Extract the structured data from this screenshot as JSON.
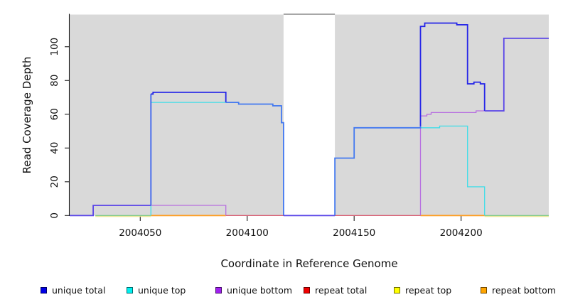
{
  "chart_data": {
    "type": "line",
    "subtype": "step-coverage-plot",
    "xlabel": "Coordinate in Reference Genome",
    "ylabel": "Read Coverage Depth",
    "xlim": [
      2004017,
      2004241
    ],
    "ylim": [
      0,
      119
    ],
    "x_ticks": [
      2004050,
      2004100,
      2004150,
      2004200
    ],
    "x_tick_labels": [
      "2004050",
      "2004100",
      "2004150",
      "2004200"
    ],
    "y_ticks": [
      0,
      20,
      40,
      60,
      80,
      100
    ],
    "y_tick_labels": [
      "0",
      "20",
      "40",
      "60",
      "80",
      "100"
    ],
    "grid": false,
    "background_bands": {
      "gray_color": "#d9d9d9",
      "gray_regions": [
        [
          2004017,
          2004117
        ],
        [
          2004141,
          2004241
        ]
      ],
      "white_gap": [
        2004117,
        2004141
      ],
      "gap_top_border_color": "#8a8a8a"
    },
    "series": [
      {
        "name": "unique total",
        "color": "#0000e6",
        "step_changes": [
          [
            2004017,
            0
          ],
          [
            2004028,
            6
          ],
          [
            2004055,
            73
          ],
          [
            2004090,
            67
          ],
          [
            2004096,
            66
          ],
          [
            2004112,
            65
          ],
          [
            2004116,
            55
          ],
          [
            2004117,
            0
          ],
          [
            2004141,
            34
          ],
          [
            2004150,
            52
          ],
          [
            2004181,
            112
          ],
          [
            2004183,
            114
          ],
          [
            2004198,
            113
          ],
          [
            2004203,
            78
          ],
          [
            2004206,
            79
          ],
          [
            2004209,
            78
          ],
          [
            2004211,
            62
          ],
          [
            2004220,
            105
          ],
          [
            2004241,
            105
          ]
        ]
      },
      {
        "name": "unique top",
        "color": "#00f0f0",
        "step_changes": [
          [
            2004017,
            0
          ],
          [
            2004055,
            67
          ],
          [
            2004090,
            66
          ],
          [
            2004112,
            65
          ],
          [
            2004116,
            55
          ],
          [
            2004117,
            0
          ],
          [
            2004141,
            34
          ],
          [
            2004150,
            52
          ],
          [
            2004181,
            53
          ],
          [
            2004203,
            17
          ],
          [
            2004211,
            0
          ],
          [
            2004241,
            0
          ]
        ]
      },
      {
        "name": "unique bottom",
        "color": "#a020f0",
        "step_changes": [
          [
            2004017,
            0
          ],
          [
            2004028,
            6
          ],
          [
            2004090,
            0
          ],
          [
            2004181,
            61
          ],
          [
            2004207,
            62
          ],
          [
            2004211,
            0
          ],
          [
            2004241,
            0
          ]
        ]
      },
      {
        "name": "repeat total",
        "color": "#f00000",
        "step_changes": [
          [
            2004017,
            0
          ],
          [
            2004241,
            0
          ]
        ]
      },
      {
        "name": "repeat top",
        "color": "#ffff00",
        "step_changes": [
          [
            2004017,
            0
          ],
          [
            2004241,
            0
          ]
        ]
      },
      {
        "name": "repeat bottom",
        "color": "#ffa500",
        "step_changes": [
          [
            2004017,
            0
          ],
          [
            2004241,
            0
          ]
        ]
      }
    ],
    "render_segments": [
      {
        "name": "repeat-total-line",
        "color": "#d85c72",
        "w": 1.3,
        "dy": 0,
        "pts": [
          [
            2004090,
            0
          ],
          [
            2004181,
            0
          ]
        ]
      },
      {
        "name": "repeat-top-line-left",
        "color": "#e6e68c",
        "w": 1.2,
        "dy": 1.4,
        "pts": [
          [
            2004029,
            0
          ],
          [
            2004055,
            0
          ]
        ]
      },
      {
        "name": "repeat-top-line-right",
        "color": "#e6e68c",
        "w": 1.2,
        "dy": 1.4,
        "pts": [
          [
            2004211,
            0
          ],
          [
            2004241,
            0
          ]
        ]
      },
      {
        "name": "cyan-yellow-blend-left",
        "color": "#7ecb87",
        "w": 1.4,
        "dy": 0,
        "pts": [
          [
            2004029,
            0
          ],
          [
            2004055,
            0
          ]
        ]
      },
      {
        "name": "cyan-yellow-blend-right",
        "color": "#7ecb87",
        "w": 1.4,
        "dy": 0,
        "pts": [
          [
            2004211,
            0
          ],
          [
            2004241,
            0
          ]
        ]
      },
      {
        "name": "repeat-bottom-line-left",
        "color": "#ff9d20",
        "w": 1.8,
        "dy": 0,
        "pts": [
          [
            2004055,
            0
          ],
          [
            2004090,
            0
          ]
        ]
      },
      {
        "name": "repeat-bottom-line-right",
        "color": "#ff9d20",
        "w": 1.8,
        "dy": 0,
        "pts": [
          [
            2004181,
            0
          ],
          [
            2004211,
            0
          ]
        ]
      },
      {
        "name": "unique-bottom-line-left",
        "color": "#b76fe0",
        "w": 1.3,
        "dy": 0,
        "pts": [
          [
            2004028,
            0
          ],
          [
            2004028,
            6
          ],
          [
            2004090,
            6
          ],
          [
            2004090,
            0
          ]
        ]
      },
      {
        "name": "unique-bottom-line-right",
        "color": "#b76fe0",
        "w": 1.3,
        "dy": 0,
        "pts": [
          [
            2004181,
            0
          ],
          [
            2004181,
            59
          ],
          [
            2004184,
            59
          ],
          [
            2004184,
            60
          ],
          [
            2004186,
            60
          ],
          [
            2004186,
            61
          ],
          [
            2004207,
            61
          ],
          [
            2004207,
            62
          ],
          [
            2004211,
            62
          ]
        ]
      },
      {
        "name": "unique-top-line-left",
        "color": "#3fdde8",
        "w": 1.3,
        "dy": 0,
        "pts": [
          [
            2004055,
            0
          ],
          [
            2004055,
            67
          ],
          [
            2004090,
            67
          ]
        ]
      },
      {
        "name": "unique-top-line-right",
        "color": "#3fdde8",
        "w": 1.3,
        "dy": 0,
        "pts": [
          [
            2004181,
            52
          ],
          [
            2004190,
            52
          ],
          [
            2004190,
            53
          ],
          [
            2004203,
            53
          ],
          [
            2004203,
            17
          ],
          [
            2004211,
            17
          ],
          [
            2004211,
            0
          ]
        ]
      },
      {
        "name": "unique-total-over-purple-a",
        "color": "#5a46e8",
        "w": 1.8,
        "dy": 0,
        "pts": [
          [
            2004017,
            0
          ],
          [
            2004028,
            0
          ],
          [
            2004028,
            6
          ],
          [
            2004055,
            6
          ]
        ]
      },
      {
        "name": "unique-total-rise-blend",
        "color": "#3c63ee",
        "w": 1.8,
        "dy": 0,
        "pts": [
          [
            2004055,
            6
          ],
          [
            2004055,
            72
          ]
        ]
      },
      {
        "name": "unique-total-pure-left",
        "color": "#2525e8",
        "w": 1.8,
        "dy": 0,
        "pts": [
          [
            2004055,
            72
          ],
          [
            2004056,
            72
          ],
          [
            2004056,
            73
          ],
          [
            2004090,
            73
          ],
          [
            2004090,
            67
          ]
        ]
      },
      {
        "name": "unique-total-over-cyan-a",
        "color": "#4379f0",
        "w": 1.8,
        "dy": 0,
        "pts": [
          [
            2004090,
            67
          ],
          [
            2004096,
            67
          ],
          [
            2004096,
            66
          ],
          [
            2004112,
            66
          ],
          [
            2004112,
            65
          ],
          [
            2004116,
            65
          ],
          [
            2004116,
            55
          ],
          [
            2004117,
            55
          ],
          [
            2004117,
            0
          ]
        ]
      },
      {
        "name": "unique-total-gap-zero",
        "color": "#5a46e8",
        "w": 1.8,
        "dy": 0,
        "pts": [
          [
            2004117,
            0
          ],
          [
            2004141,
            0
          ]
        ]
      },
      {
        "name": "unique-total-over-cyan-b",
        "color": "#4379f0",
        "w": 1.8,
        "dy": 0,
        "pts": [
          [
            2004141,
            0
          ],
          [
            2004141,
            34
          ],
          [
            2004150,
            34
          ],
          [
            2004150,
            52
          ],
          [
            2004181,
            52
          ],
          [
            2004181,
            53
          ]
        ]
      },
      {
        "name": "unique-total-pure-right",
        "color": "#2525e8",
        "w": 1.8,
        "dy": 0,
        "pts": [
          [
            2004181,
            53
          ],
          [
            2004181,
            112
          ],
          [
            2004183,
            112
          ],
          [
            2004183,
            114
          ],
          [
            2004198,
            114
          ],
          [
            2004198,
            113
          ],
          [
            2004203,
            113
          ],
          [
            2004203,
            78
          ],
          [
            2004206,
            78
          ],
          [
            2004206,
            79
          ],
          [
            2004209,
            79
          ],
          [
            2004209,
            78
          ],
          [
            2004211,
            78
          ],
          [
            2004211,
            62
          ]
        ]
      },
      {
        "name": "unique-total-over-purple-b",
        "color": "#5a46e8",
        "w": 1.8,
        "dy": 0,
        "pts": [
          [
            2004211,
            62
          ],
          [
            2004220,
            62
          ],
          [
            2004220,
            105
          ],
          [
            2004241,
            105
          ]
        ]
      }
    ]
  },
  "axes_titles": {
    "x": "Coordinate in Reference Genome",
    "y": "Read Coverage Depth"
  },
  "legend": {
    "items": [
      {
        "label": "unique total",
        "color": "#0000e6"
      },
      {
        "label": "unique top",
        "color": "#00f0f0"
      },
      {
        "label": "unique bottom",
        "color": "#a020f0"
      },
      {
        "label": "repeat total",
        "color": "#f00000"
      },
      {
        "label": "repeat top",
        "color": "#ffff00"
      },
      {
        "label": "repeat bottom",
        "color": "#ffa500"
      }
    ]
  }
}
